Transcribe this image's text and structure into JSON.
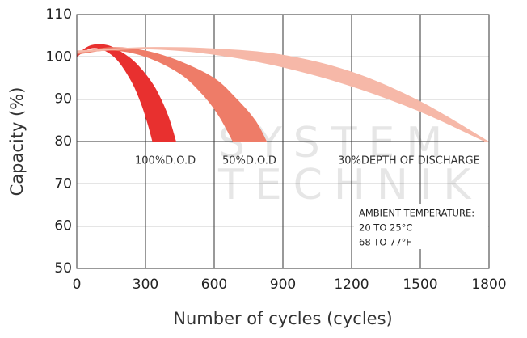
{
  "chart_data": {
    "type": "band",
    "xlabel": "Number of cycles (cycles)",
    "ylabel": "Capacity (%)",
    "xlim": [
      0,
      1800
    ],
    "xticks": [
      0,
      300,
      600,
      900,
      1200,
      1500,
      1800
    ],
    "ylim": [
      50,
      110
    ],
    "yticks": [
      50,
      60,
      70,
      80,
      90,
      100,
      110
    ],
    "grid": true,
    "series": [
      {
        "name": "100%D.O.D",
        "color": "#e8302f",
        "x": [
          0,
          50,
          100,
          150,
          200,
          250,
          300,
          350,
          400,
          434
        ],
        "values": [
          100.5,
          102.5,
          103,
          102.5,
          101,
          99,
          96,
          92,
          86,
          80
        ],
        "lower_x": [
          0,
          60,
          120,
          180,
          240,
          280,
          310,
          330
        ],
        "lower_values": [
          100,
          102,
          101.5,
          99,
          94,
          89,
          84,
          80
        ]
      },
      {
        "name": "50%D.O.D",
        "color": "#ee7c68",
        "x": [
          0,
          150,
          300,
          450,
          600,
          700,
          780,
          830
        ],
        "values": [
          101,
          102.3,
          101.5,
          99,
          95,
          90,
          85,
          80
        ],
        "lower_x": [
          0,
          150,
          300,
          450,
          550,
          620,
          681
        ],
        "lower_values": [
          100.5,
          101.5,
          100,
          96,
          91,
          86,
          80
        ]
      },
      {
        "name": "30%DEPTH OF DISCHARGE",
        "color": "#f6b8a8",
        "x": [
          0,
          300,
          600,
          900,
          1200,
          1500,
          1800
        ],
        "values": [
          101.5,
          102.3,
          102,
          100.5,
          96.5,
          89.5,
          80
        ],
        "lower_x": [
          0,
          300,
          600,
          900,
          1200,
          1500,
          1780
        ],
        "lower_values": [
          101,
          101.8,
          100.5,
          97.5,
          93,
          87,
          80
        ]
      }
    ],
    "watermark": [
      "SYSTEM",
      "TECHNIK"
    ],
    "annotation": [
      "AMBIENT TEMPERATURE:",
      "20 TO 25°C",
      "68 TO 77°F"
    ]
  }
}
